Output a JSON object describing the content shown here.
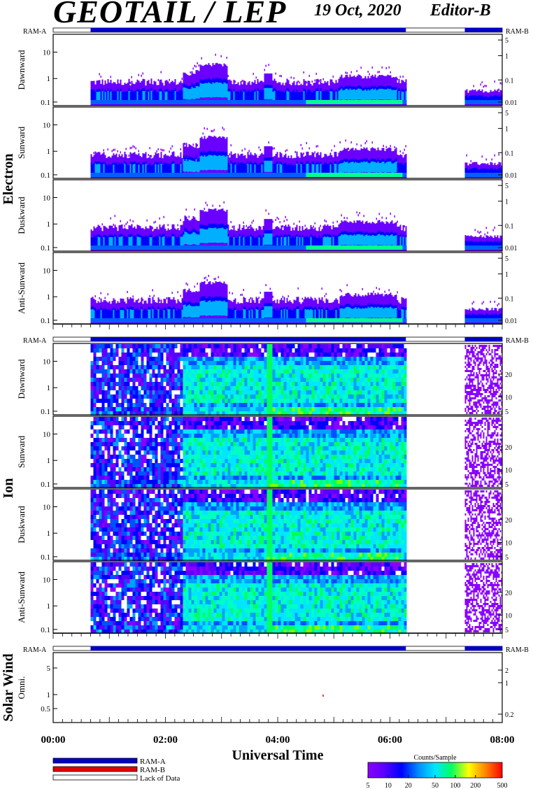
{
  "header": {
    "title": "GEOTAIL / LEP",
    "date": "19 Oct, 2020",
    "editor": "Editor-B"
  },
  "colors": {
    "ram_a": "#0000c8",
    "ram_b": "#e00000",
    "lack": "#ffffff",
    "axis": "#000000"
  },
  "legend": {
    "items": [
      {
        "label": "RAM-A",
        "color": "#0000c8"
      },
      {
        "label": "RAM-B",
        "color": "#e00000"
      },
      {
        "label": "Lack of Data",
        "color": "#ffffff"
      }
    ]
  },
  "colorbar": {
    "title": "Counts/Sample",
    "ticks": [
      "5",
      "10",
      "20",
      "50",
      "100",
      "200",
      "500"
    ],
    "values": [
      5,
      10,
      20,
      50,
      100,
      200,
      500
    ],
    "scale": "log"
  },
  "chart_data": {
    "type": "heatmap",
    "x_axis": {
      "label": "Universal Time",
      "ticks": [
        "00:00",
        "02:00",
        "04:00",
        "06:00",
        "08:00"
      ],
      "range_hours": [
        0,
        8
      ],
      "minor_step_minutes": 10
    },
    "mode_bar": {
      "left_label": "RAM-A",
      "right_label": "RAM-B",
      "segments": [
        {
          "start": "00:00",
          "end": "00:40",
          "mode": "Lack of Data"
        },
        {
          "start": "00:40",
          "end": "06:17",
          "mode": "RAM-A"
        },
        {
          "start": "06:17",
          "end": "07:20",
          "mode": "Lack of Data"
        },
        {
          "start": "07:20",
          "end": "08:00",
          "mode": "RAM-A"
        }
      ]
    },
    "data_intervals": [
      {
        "start": "00:40",
        "end": "06:17"
      },
      {
        "start": "07:20",
        "end": "08:00"
      }
    ],
    "groups": [
      {
        "name": "Electron",
        "panels": [
          {
            "label": "Dawnward",
            "left_ticks": [
              "10",
              "1",
              "0.1"
            ],
            "right_ticks": [
              "5",
              "1",
              "0.1",
              "0.01"
            ]
          },
          {
            "label": "Sunward",
            "left_ticks": [
              "10",
              "1",
              "0.1"
            ],
            "right_ticks": [
              "5",
              "1",
              "0.1",
              "0.01"
            ]
          },
          {
            "label": "Duskward",
            "left_ticks": [
              "10",
              "1",
              "0.1"
            ],
            "right_ticks": [
              "5",
              "1",
              "0.1",
              "0.01"
            ]
          },
          {
            "label": "Anti-Sunward",
            "left_ticks": [
              "10",
              "1",
              "0.1"
            ],
            "right_ticks": [
              "5",
              "1",
              "0.1",
              "0.01"
            ]
          }
        ]
      },
      {
        "name": "Ion",
        "panels": [
          {
            "label": "Dawnward",
            "left_ticks": [
              "10",
              "1",
              "0.1"
            ],
            "right_ticks": [
              "20",
              "10",
              "5"
            ]
          },
          {
            "label": "Sunward",
            "left_ticks": [
              "10",
              "1",
              "0.1"
            ],
            "right_ticks": [
              "20",
              "10",
              "5"
            ]
          },
          {
            "label": "Duskward",
            "left_ticks": [
              "10",
              "1",
              "0.1"
            ],
            "right_ticks": [
              "20",
              "10",
              "5"
            ]
          },
          {
            "label": "Anti-Sunward",
            "left_ticks": [
              "10",
              "1",
              "0.1"
            ],
            "right_ticks": [
              "20",
              "10",
              "5"
            ]
          }
        ]
      },
      {
        "name": "Solar Wind",
        "panels": [
          {
            "label": "Omni.",
            "left_ticks": [
              "5",
              "1",
              "0.5"
            ],
            "right_ticks": [
              "2",
              "1",
              "0.2"
            ]
          }
        ]
      }
    ]
  }
}
